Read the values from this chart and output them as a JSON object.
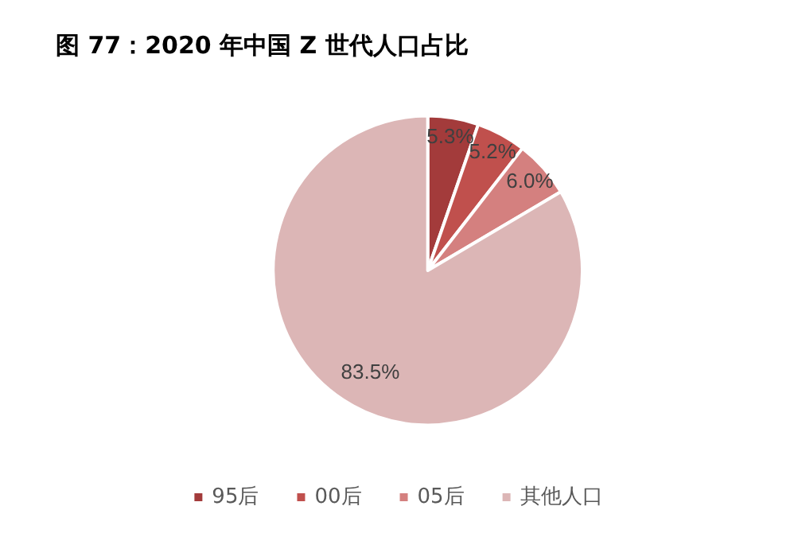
{
  "chart_data": {
    "type": "pie",
    "title": "图 77：2020 年中国 Z 世代人口占比",
    "categories": [
      "95后",
      "00后",
      "05后",
      "其他人口"
    ],
    "values": [
      5.3,
      5.2,
      6.0,
      83.5
    ],
    "colors": [
      "#a33b3b",
      "#c0504d",
      "#d4807f",
      "#dcb6b6"
    ],
    "value_labels": [
      "5.3%",
      "5.2%",
      "6.0%",
      "83.5%"
    ],
    "legend": "bottom"
  }
}
